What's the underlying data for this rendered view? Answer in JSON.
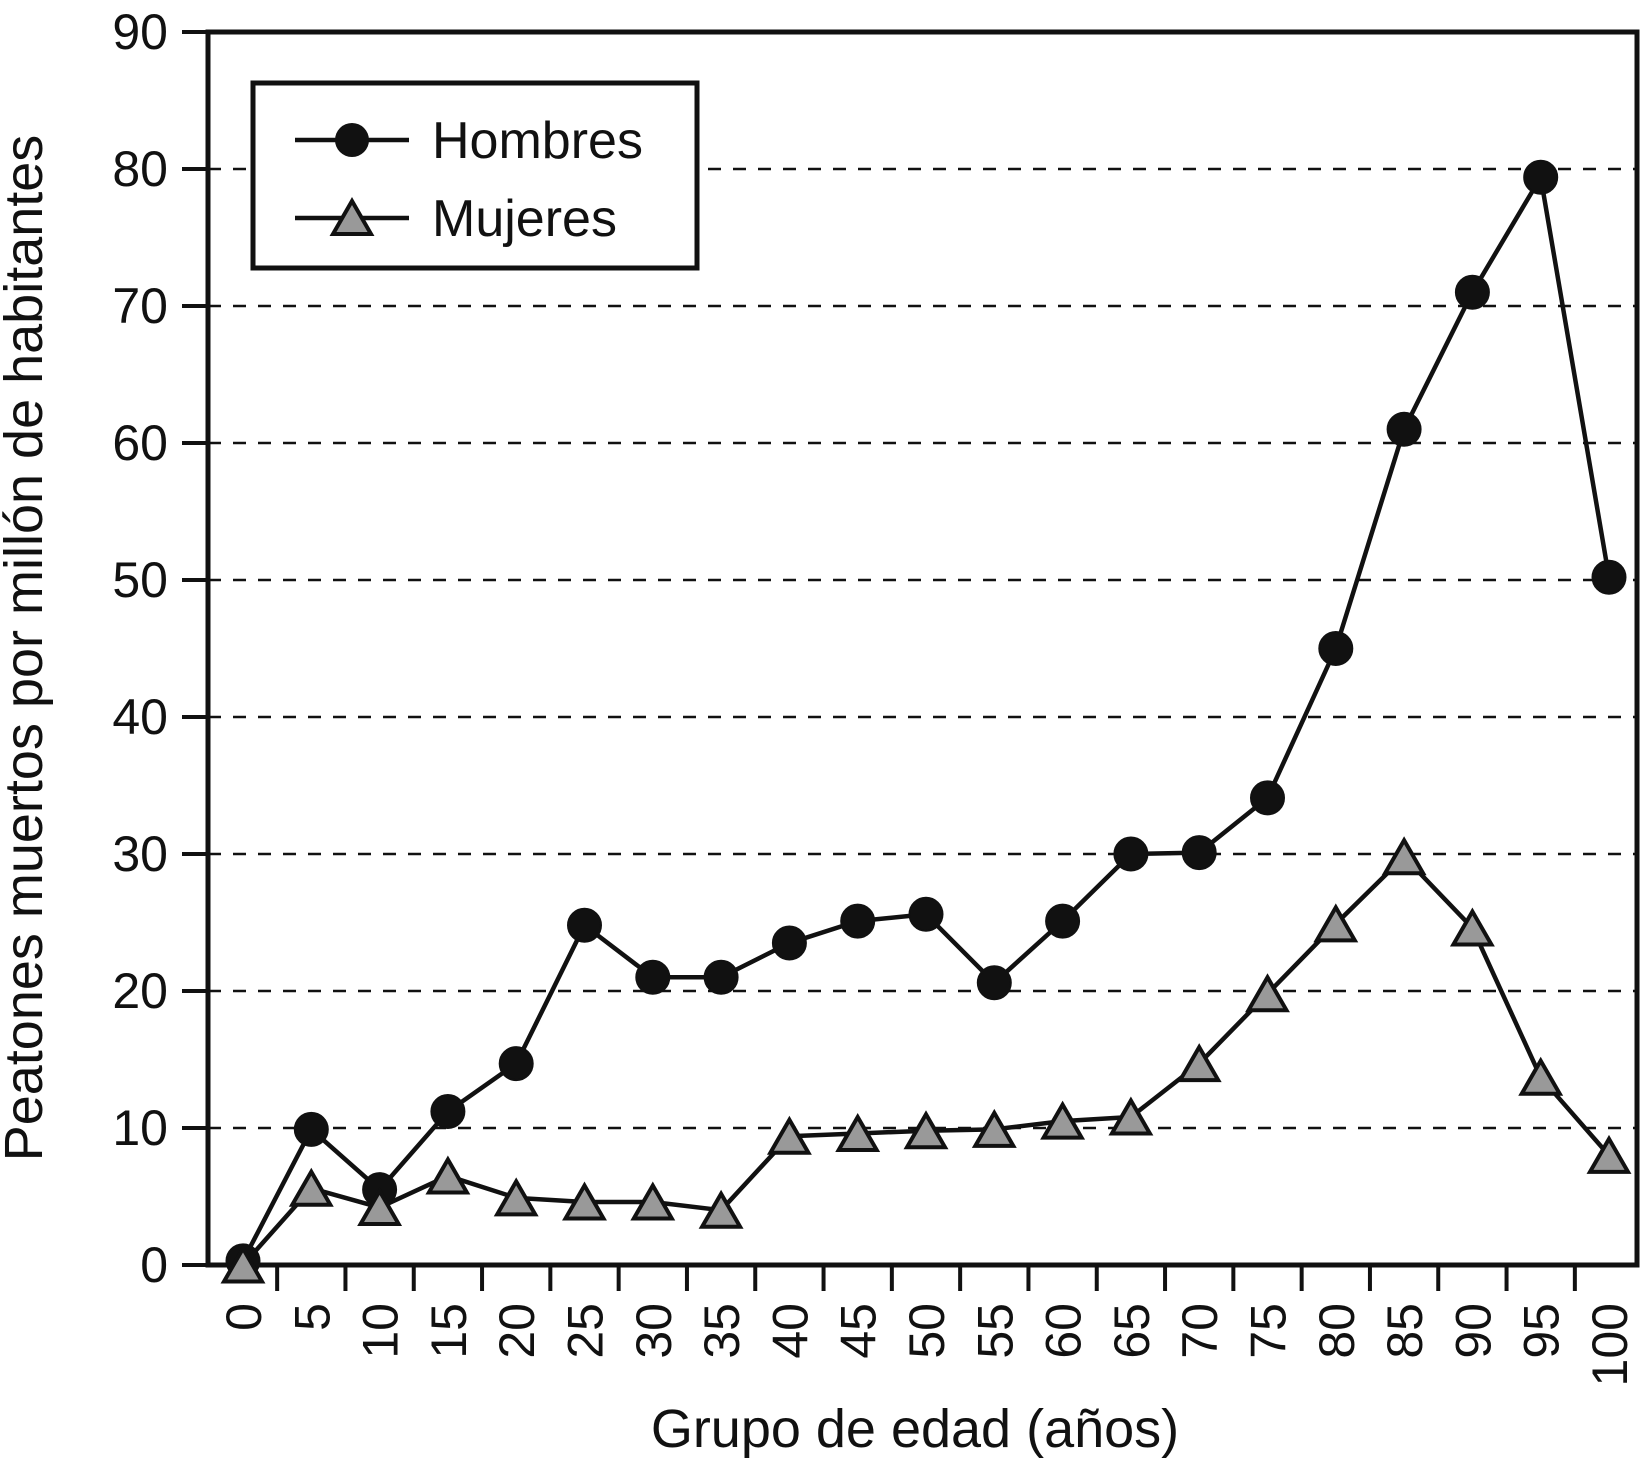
{
  "chart_data": {
    "type": "line",
    "title": "",
    "xlabel": "Grupo de edad (años)",
    "ylabel": "Peatones muertos por millón de habitantes",
    "x": [
      0,
      5,
      10,
      15,
      20,
      25,
      30,
      35,
      40,
      45,
      50,
      55,
      60,
      65,
      70,
      75,
      80,
      85,
      90,
      95,
      100
    ],
    "series": [
      {
        "name": "Hombres",
        "marker": "circle",
        "line_color": "#111111",
        "marker_fill": "#111111",
        "marker_edge": "#111111",
        "values": [
          0.3,
          9.9,
          5.5,
          11.2,
          14.7,
          24.8,
          21.0,
          21.0,
          23.5,
          25.1,
          25.6,
          20.6,
          25.1,
          30.0,
          30.1,
          34.1,
          45.0,
          61.0,
          71.0,
          79.4,
          50.2
        ]
      },
      {
        "name": "Mujeres",
        "marker": "triangle",
        "line_color": "#111111",
        "marker_fill": "#999999",
        "marker_edge": "#111111",
        "values": [
          0.0,
          5.6,
          4.2,
          6.5,
          4.9,
          4.6,
          4.6,
          4.0,
          9.4,
          9.6,
          9.8,
          9.9,
          10.5,
          10.8,
          14.7,
          19.8,
          24.9,
          29.8,
          24.6,
          13.7,
          8.0
        ]
      }
    ],
    "xlim": [
      -2.5,
      102.5
    ],
    "ylim": [
      0,
      90
    ],
    "yticks": [
      0,
      10,
      20,
      30,
      40,
      50,
      60,
      70,
      80,
      90
    ],
    "xtick_label_step": 5,
    "xtick_mark_positions": [
      2.5,
      7.5,
      12.5,
      17.5,
      22.5,
      27.5,
      32.5,
      37.5,
      42.5,
      47.5,
      52.5,
      57.5,
      62.5,
      67.5,
      72.5,
      77.5,
      82.5,
      87.5,
      92.5,
      97.5
    ],
    "grid": {
      "horizontal": true,
      "style": "dashed",
      "color": "#111111"
    },
    "legend": {
      "position": "top-left",
      "border": true,
      "background": "#ffffff"
    },
    "frame_color": "#111111",
    "background": "#ffffff"
  }
}
